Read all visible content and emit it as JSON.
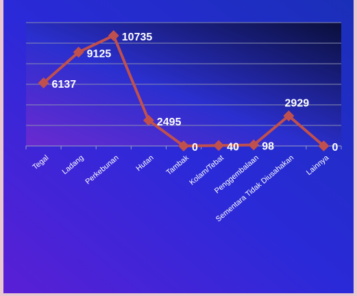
{
  "chart_data": {
    "type": "line",
    "categories": [
      "Tegal",
      "Ladang",
      "Perkebunan",
      "Hutan",
      "Tambak",
      "Kolam/Tebat",
      "Penggembalaan",
      "Sementara Tidak Diusahakan",
      "Lainnya"
    ],
    "values": [
      6137,
      9125,
      10735,
      2495,
      0,
      40,
      98,
      2929,
      0
    ],
    "color": "#c0504d",
    "ylim": [
      0,
      12000
    ],
    "yticks": [
      0,
      2000,
      4000,
      6000,
      8000,
      10000,
      12000
    ],
    "grid": true
  }
}
